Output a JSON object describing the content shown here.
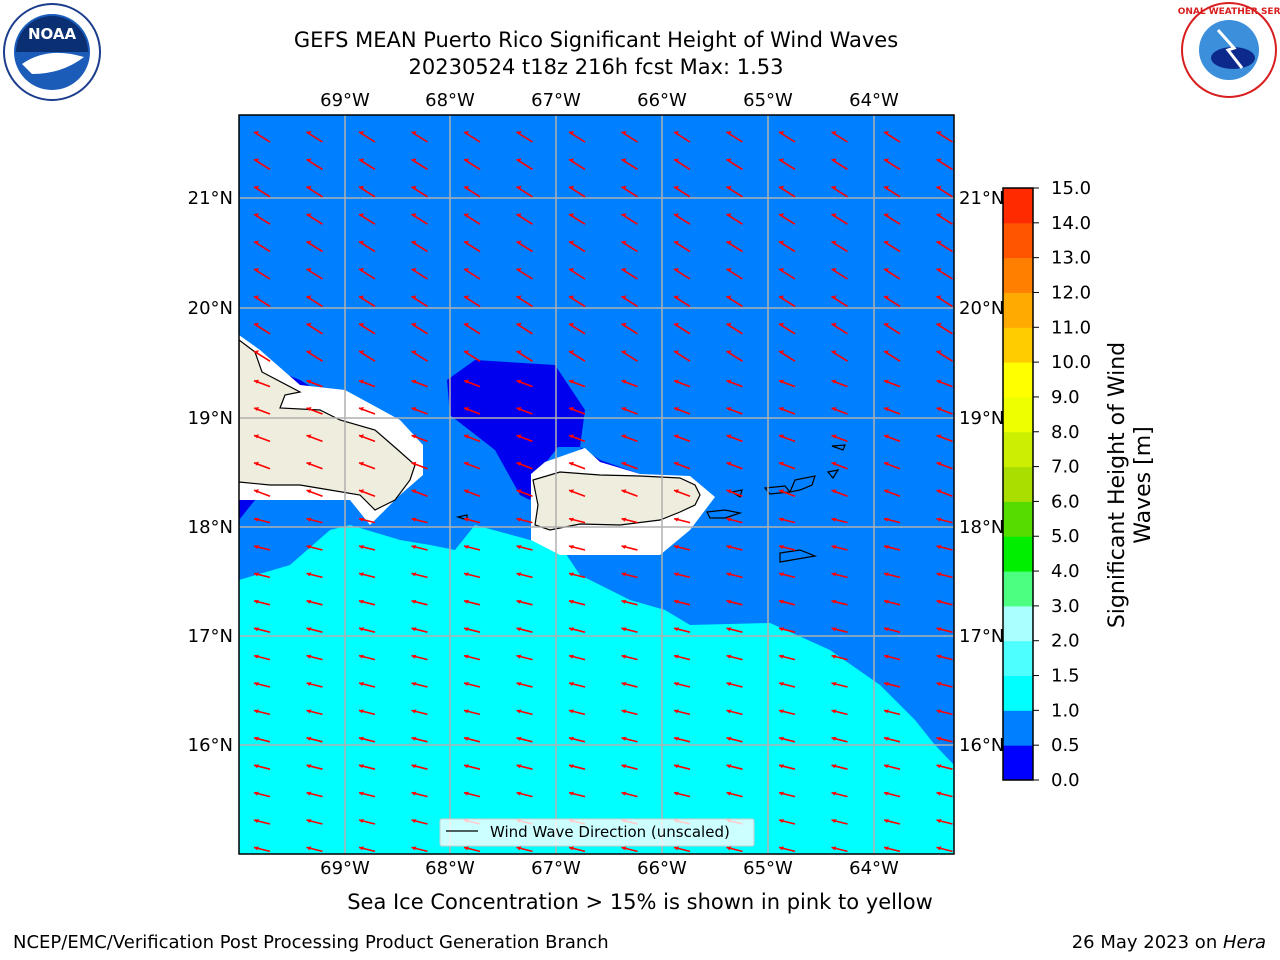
{
  "header": {
    "title_line1": "GEFS MEAN Puerto Rico Significant Height of Wind Waves",
    "title_line2": "20230524 t18z 216h fcst   Max: 1.53"
  },
  "logos": {
    "left": {
      "name": "noaa-logo",
      "text": "NOAA"
    },
    "right": {
      "name": "nws-logo",
      "text": "NATIONAL WEATHER SERVICE"
    }
  },
  "map": {
    "lon_labels": [
      "69°W",
      "68°W",
      "67°W",
      "66°W",
      "65°W",
      "64°W"
    ],
    "lat_labels": [
      "21°N",
      "20°N",
      "19°N",
      "18°N",
      "17°N",
      "16°N"
    ],
    "legend_label": "Wind Wave Direction (unscaled)",
    "colors": {
      "ocean_low": "#007fff",
      "ocean_shallow": "#0000ee",
      "ocean_mid": "#00ffff",
      "land": "#efedde",
      "arrow": "#ff0000",
      "grid": "#b0b0b0"
    }
  },
  "colorbar": {
    "label": "Significant Height of Wind Waves [m]",
    "ticks": [
      "0.0",
      "0.5",
      "1.0",
      "1.5",
      "2.0",
      "3.0",
      "4.0",
      "5.0",
      "6.0",
      "7.0",
      "8.0",
      "9.0",
      "10.0",
      "11.0",
      "12.0",
      "13.0",
      "14.0",
      "15.0"
    ],
    "colors": [
      "#0000ff",
      "#007fff",
      "#00ffff",
      "#4dffff",
      "#aaffff",
      "#4dff80",
      "#00ee00",
      "#55dd00",
      "#aadd00",
      "#ccee00",
      "#eeff00",
      "#ffff00",
      "#ffcc00",
      "#ffaa00",
      "#ff8000",
      "#ff5500",
      "#ff2a00"
    ]
  },
  "caption": "Sea Ice Concentration > 15% is shown in pink to yellow",
  "footer": {
    "left": "NCEP/EMC/Verification Post Processing Product Generation Branch",
    "right_date": "26 May 2023 on ",
    "right_host": "Hera"
  }
}
